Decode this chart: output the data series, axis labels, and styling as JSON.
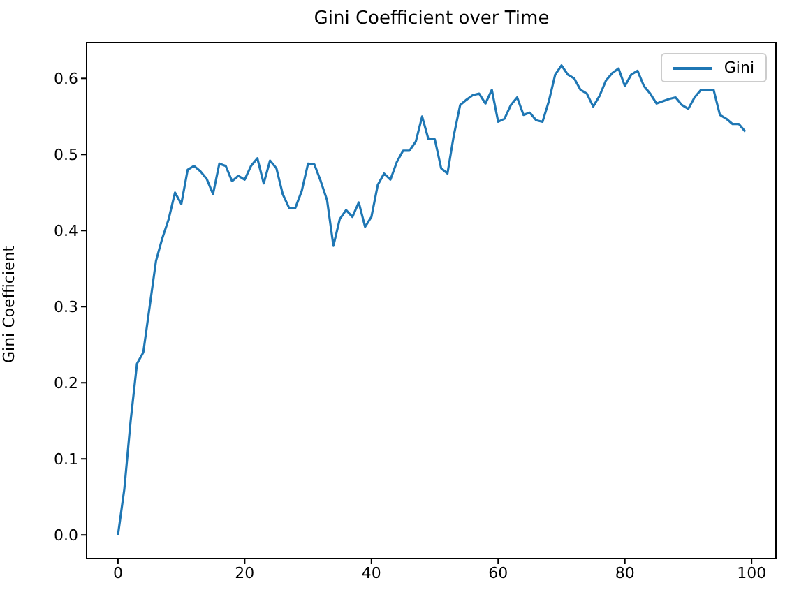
{
  "chart_data": {
    "type": "line",
    "title": "Gini Coefficient over Time",
    "ylabel": "Gini Coefficient",
    "x": [
      0,
      1,
      2,
      3,
      4,
      5,
      6,
      7,
      8,
      9,
      10,
      11,
      12,
      13,
      14,
      15,
      16,
      17,
      18,
      19,
      20,
      21,
      22,
      23,
      24,
      25,
      26,
      27,
      28,
      29,
      30,
      31,
      32,
      33,
      34,
      35,
      36,
      37,
      38,
      39,
      40,
      41,
      42,
      43,
      44,
      45,
      46,
      47,
      48,
      49,
      50,
      51,
      52,
      53,
      54,
      55,
      56,
      57,
      58,
      59,
      60,
      61,
      62,
      63,
      64,
      65,
      66,
      67,
      68,
      69,
      70,
      71,
      72,
      73,
      74,
      75,
      76,
      77,
      78,
      79,
      80,
      81,
      82,
      83,
      84,
      85,
      86,
      87,
      88,
      89,
      90,
      91,
      92,
      93,
      94,
      95,
      96,
      97,
      98,
      99
    ],
    "series": [
      {
        "name": "Gini",
        "color": "#1f77b4",
        "values": [
          0.0,
          0.06,
          0.15,
          0.225,
          0.24,
          0.3,
          0.36,
          0.39,
          0.415,
          0.45,
          0.435,
          0.48,
          0.485,
          0.478,
          0.468,
          0.448,
          0.488,
          0.485,
          0.465,
          0.472,
          0.467,
          0.485,
          0.495,
          0.462,
          0.492,
          0.482,
          0.448,
          0.43,
          0.43,
          0.452,
          0.488,
          0.487,
          0.465,
          0.44,
          0.38,
          0.415,
          0.427,
          0.418,
          0.437,
          0.405,
          0.418,
          0.46,
          0.475,
          0.467,
          0.49,
          0.505,
          0.505,
          0.517,
          0.55,
          0.52,
          0.52,
          0.482,
          0.475,
          0.525,
          0.565,
          0.572,
          0.578,
          0.58,
          0.567,
          0.585,
          0.543,
          0.547,
          0.565,
          0.575,
          0.552,
          0.555,
          0.545,
          0.543,
          0.57,
          0.605,
          0.617,
          0.605,
          0.6,
          0.585,
          0.58,
          0.563,
          0.577,
          0.597,
          0.607,
          0.613,
          0.59,
          0.605,
          0.61,
          0.59,
          0.58,
          0.567,
          0.57,
          0.573,
          0.575,
          0.565,
          0.56,
          0.575,
          0.585,
          0.585,
          0.585,
          0.552,
          0.547,
          0.54,
          0.54,
          0.53
        ]
      }
    ],
    "xlim": [
      -4.95,
      103.95
    ],
    "xticks": [
      0,
      20,
      40,
      60,
      80,
      100
    ],
    "ylim": [
      -0.031,
      0.648
    ],
    "yticks": [
      {
        "value": 0,
        "label": "0.0"
      },
      {
        "value": 0.1,
        "label": "0.1"
      },
      {
        "value": 0.2,
        "label": "0.2"
      },
      {
        "value": 0.3,
        "label": "0.3"
      },
      {
        "value": 0.4,
        "label": "0.4"
      },
      {
        "value": 0.5,
        "label": "0.5"
      },
      {
        "value": 0.6,
        "label": "0.6"
      }
    ],
    "legend": "top right",
    "grid": false,
    "marker": "none",
    "line_style": "solid"
  }
}
